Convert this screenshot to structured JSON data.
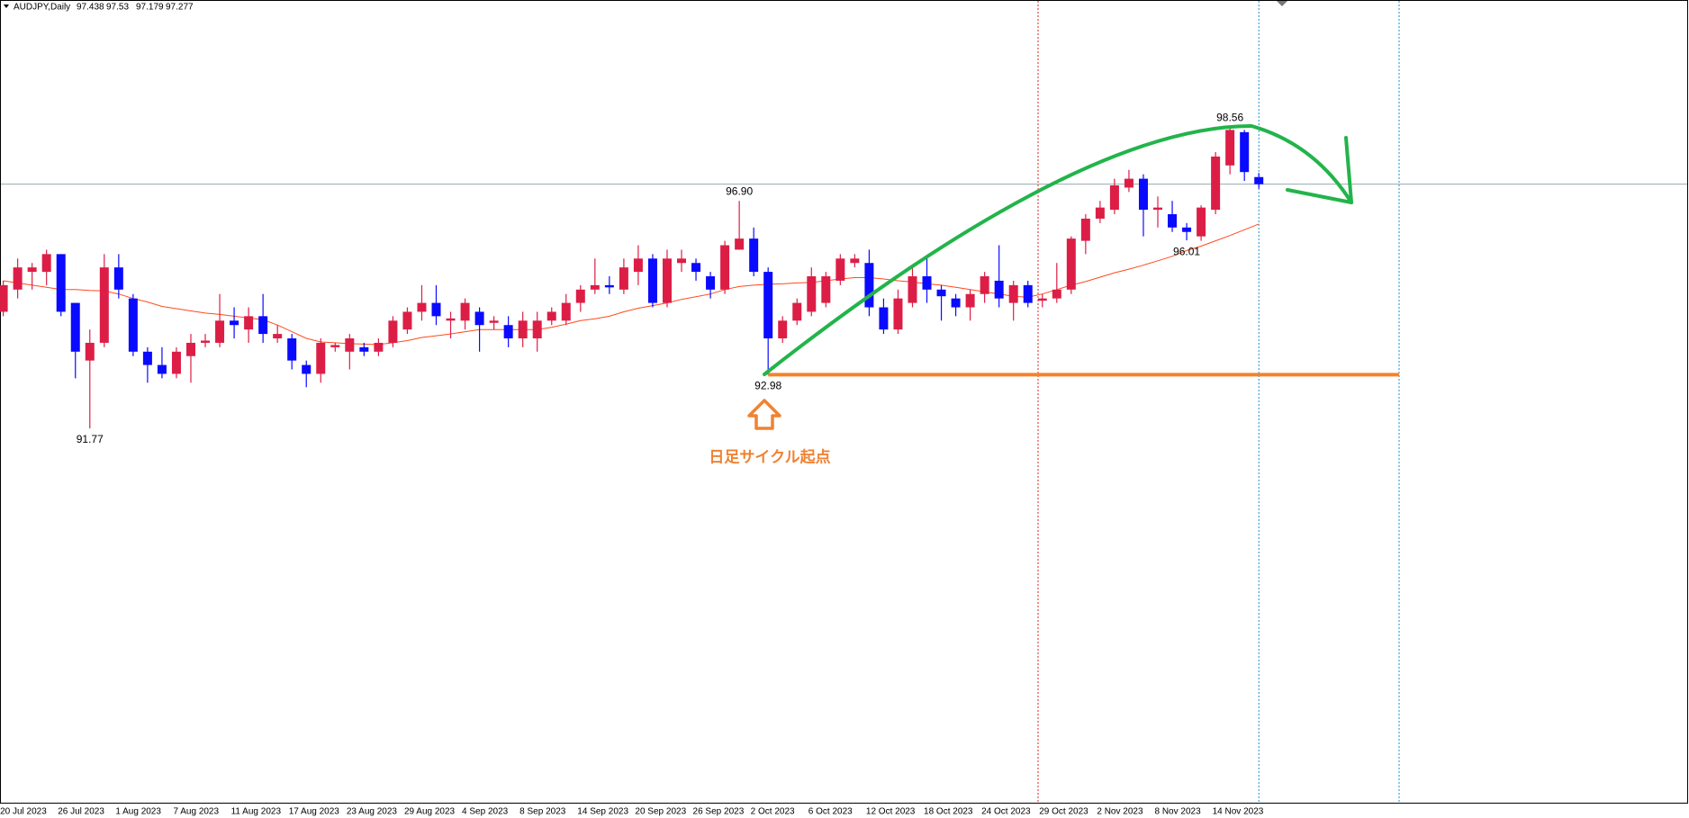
{
  "chart_data": {
    "type": "candlestick",
    "title": "AUDJPY,Daily",
    "categories": [
      "20 Jul 2023",
      null,
      null,
      null,
      "26 Jul 2023",
      null,
      null,
      null,
      "1 Aug 2023",
      null,
      null,
      null,
      "7 Aug 2023",
      null,
      null,
      null,
      "11 Aug 2023",
      null,
      null,
      null,
      "17 Aug 2023",
      null,
      null,
      null,
      "23 Aug 2023",
      null,
      null,
      null,
      "29 Aug 2023",
      null,
      null,
      null,
      "4 Sep 2023",
      null,
      null,
      null,
      "8 Sep 2023",
      null,
      null,
      null,
      "14 Sep 2023",
      null,
      null,
      null,
      "20 Sep 2023",
      null,
      null,
      null,
      "26 Sep 2023",
      null,
      null,
      null,
      "2 Oct 2023",
      null,
      null,
      null,
      "6 Oct 2023",
      null,
      null,
      null,
      "12 Oct 2023",
      null,
      null,
      null,
      "18 Oct 2023",
      null,
      null,
      null,
      "24 Oct 2023",
      null,
      null,
      null,
      "29 Oct 2023",
      null,
      null,
      null,
      "2 Nov 2023",
      null,
      null,
      null,
      "8 Nov 2023",
      null,
      null,
      null,
      "14 Nov 2023",
      null,
      null,
      null
    ],
    "open": [
      94.4,
      94.9,
      95.3,
      95.3,
      95.7,
      94.6,
      93.3,
      93.7,
      95.4,
      94.7,
      93.5,
      93.2,
      93.0,
      93.4,
      93.7,
      93.7,
      94.2,
      94.0,
      94.3,
      93.8,
      93.8,
      93.2,
      93.0,
      93.6,
      93.5,
      93.6,
      93.5,
      93.7,
      94.0,
      94.4,
      94.6,
      94.2,
      94.2,
      94.4,
      94.15,
      94.1,
      93.8,
      93.8,
      94.2,
      94.2,
      94.6,
      94.9,
      95.0,
      94.9,
      95.3,
      95.6,
      94.6,
      95.5,
      95.5,
      95.2,
      94.9,
      95.8,
      96.05,
      95.3,
      93.8,
      94.2,
      94.4,
      94.6,
      95.1,
      95.5,
      95.5,
      94.5,
      94.0,
      94.6,
      95.2,
      94.9,
      94.7,
      94.5,
      94.8,
      95.1,
      94.6,
      95.0,
      94.65,
      94.7,
      94.9,
      96.0,
      96.5,
      96.7,
      97.2,
      97.4,
      96.7,
      96.6,
      96.3,
      96.1,
      96.7,
      97.7,
      98.45,
      97.438
    ],
    "high": [
      95.1,
      95.6,
      95.5,
      95.8,
      95.7,
      94.6,
      94.0,
      95.7,
      95.7,
      94.8,
      93.6,
      93.6,
      93.6,
      93.9,
      93.9,
      94.8,
      94.5,
      94.5,
      94.8,
      94.1,
      93.9,
      93.3,
      93.8,
      93.7,
      93.9,
      93.7,
      93.8,
      94.3,
      94.5,
      95.0,
      95.0,
      94.4,
      94.7,
      94.5,
      94.3,
      94.3,
      94.4,
      94.4,
      94.5,
      94.8,
      95.0,
      95.6,
      95.2,
      95.6,
      95.9,
      95.7,
      95.8,
      95.8,
      95.6,
      95.3,
      96.0,
      96.9,
      96.3,
      95.4,
      94.3,
      94.7,
      95.4,
      95.3,
      95.7,
      95.7,
      95.8,
      94.7,
      94.9,
      95.4,
      95.6,
      95.0,
      94.8,
      94.9,
      95.3,
      95.9,
      95.1,
      95.1,
      94.8,
      95.5,
      96.1,
      96.6,
      96.9,
      97.4,
      97.6,
      97.5,
      97.0,
      96.9,
      96.4,
      96.8,
      98.0,
      98.56,
      98.5,
      97.53
    ],
    "low": [
      94.3,
      94.7,
      94.9,
      95.0,
      94.3,
      92.9,
      91.77,
      93.6,
      94.7,
      93.4,
      92.8,
      92.9,
      92.9,
      92.8,
      93.6,
      93.6,
      93.8,
      93.7,
      93.7,
      93.7,
      93.1,
      92.7,
      92.8,
      93.5,
      93.1,
      93.4,
      93.4,
      93.6,
      93.9,
      94.2,
      94.1,
      93.8,
      94.0,
      93.5,
      94.0,
      93.6,
      93.6,
      93.5,
      94.1,
      94.1,
      94.4,
      94.8,
      94.8,
      94.8,
      95.0,
      94.5,
      94.5,
      95.3,
      95.1,
      94.7,
      94.8,
      95.8,
      95.2,
      92.98,
      93.7,
      94.1,
      94.3,
      94.5,
      95.0,
      95.4,
      94.3,
      93.9,
      93.9,
      94.5,
      94.6,
      94.2,
      94.3,
      94.2,
      94.6,
      94.5,
      94.2,
      94.5,
      94.5,
      94.6,
      94.8,
      95.7,
      96.4,
      96.6,
      97.1,
      96.1,
      96.3,
      96.2,
      96.01,
      96.0,
      96.6,
      97.5,
      97.35,
      97.179
    ],
    "close": [
      95.0,
      95.4,
      95.4,
      95.7,
      94.4,
      93.5,
      93.7,
      95.4,
      94.9,
      93.5,
      93.2,
      93.0,
      93.5,
      93.7,
      93.75,
      94.2,
      94.1,
      94.3,
      93.9,
      93.9,
      93.3,
      93.0,
      93.7,
      93.65,
      93.8,
      93.5,
      93.7,
      94.2,
      94.4,
      94.6,
      94.3,
      94.25,
      94.6,
      94.1,
      94.2,
      93.8,
      94.2,
      94.2,
      94.4,
      94.6,
      94.9,
      95.0,
      94.95,
      95.4,
      95.6,
      94.6,
      95.6,
      95.6,
      95.3,
      94.9,
      95.9,
      96.05,
      95.3,
      93.8,
      94.2,
      94.6,
      95.2,
      95.2,
      95.6,
      95.6,
      94.5,
      94.0,
      94.7,
      95.2,
      94.9,
      94.75,
      94.5,
      94.8,
      95.2,
      94.7,
      95.0,
      94.6,
      94.7,
      94.9,
      96.05,
      96.5,
      96.75,
      97.25,
      97.4,
      96.7,
      96.75,
      96.3,
      96.2,
      96.75,
      97.9,
      98.5,
      97.55,
      97.277
    ],
    "up_color": "#dc1e46",
    "down_color": "#0a0aff",
    "ma": {
      "color": "#ff4a1c",
      "values": [
        95.1,
        95.05,
        95.0,
        94.95,
        94.9,
        94.9,
        94.88,
        94.87,
        94.8,
        94.7,
        94.62,
        94.52,
        94.47,
        94.42,
        94.37,
        94.34,
        94.3,
        94.26,
        94.22,
        94.1,
        93.95,
        93.8,
        93.72,
        93.7,
        93.68,
        93.67,
        93.66,
        93.7,
        93.75,
        93.82,
        93.86,
        93.9,
        93.95,
        94.0,
        94.0,
        94.0,
        94.0,
        94.0,
        94.05,
        94.12,
        94.2,
        94.24,
        94.3,
        94.4,
        94.48,
        94.54,
        94.6,
        94.68,
        94.74,
        94.8,
        94.9,
        94.97,
        95.0,
        95.02,
        95.03,
        95.05,
        95.06,
        95.1,
        95.14,
        95.17,
        95.17,
        95.14,
        95.1,
        95.07,
        95.03,
        95.0,
        94.95,
        94.9,
        94.85,
        94.8,
        94.75,
        94.73,
        94.8,
        94.9,
        95.0,
        95.08,
        95.18,
        95.28,
        95.36,
        95.45,
        95.55,
        95.65,
        95.78,
        95.88,
        96.0,
        96.12,
        96.25,
        96.38
      ]
    },
    "ylim": [
      83.33,
      101.43
    ],
    "annotations": [
      {
        "text": "96.90",
        "value": 96.9
      },
      {
        "text": "92.98",
        "value": 92.98
      },
      {
        "text": "91.77",
        "value": 91.77
      },
      {
        "text": "98.56",
        "value": 98.56
      },
      {
        "text": "96.01",
        "value": 96.01
      }
    ],
    "note": "日足サイクル起点"
  }
}
